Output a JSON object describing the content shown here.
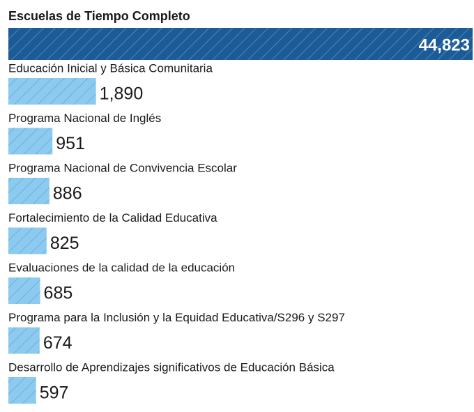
{
  "chart_data": {
    "type": "barh",
    "title": "Escuelas de Tiempo Completo",
    "categories": [
      "Escuelas de Tiempo Completo",
      "Educación Inicial y Básica Comunitaria",
      "Programa Nacional de Inglés",
      "Programa Nacional de Convivencia Escolar",
      "Fortalecimiento de la Calidad Educativa",
      "Evaluaciones de la calidad de la educación",
      "Programa para la Inclusión y la Equidad Educativa/S296 y S297",
      "Desarrollo de Aprendizajes significativos de Educación Básica"
    ],
    "values": [
      44823,
      1890,
      951,
      886,
      825,
      685,
      674,
      597
    ],
    "value_labels": [
      "44,823",
      "1,890",
      "951",
      "886",
      "825",
      "685",
      "674",
      "597"
    ],
    "colors": [
      "#1b5b97",
      "#8ccbef"
    ]
  }
}
